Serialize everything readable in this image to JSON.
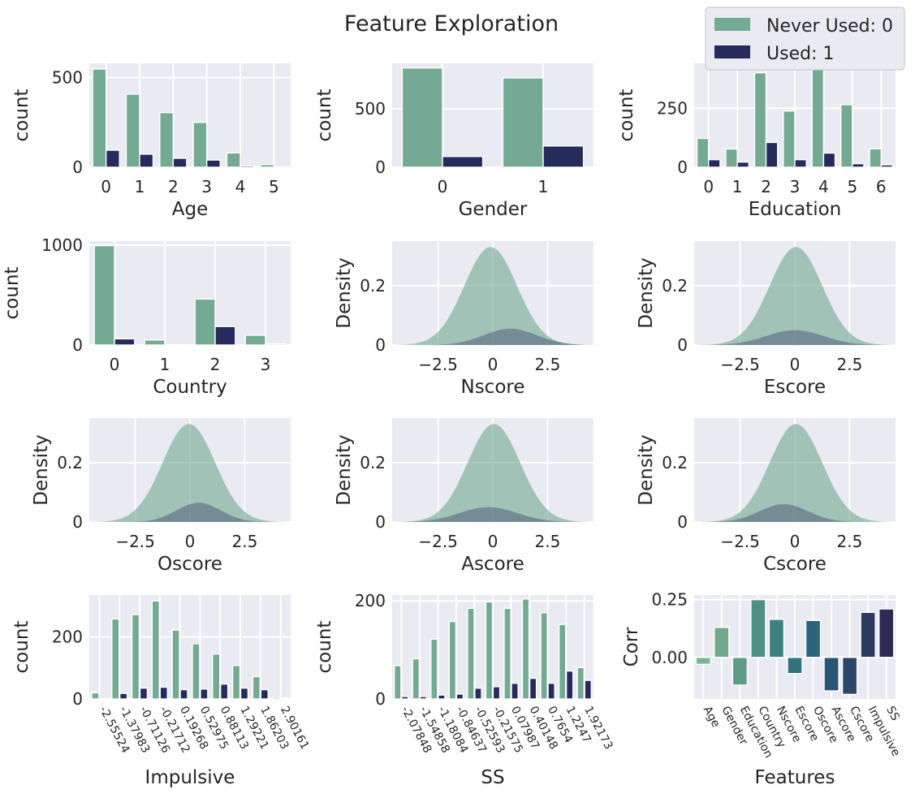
{
  "figure": {
    "title": "Feature Exploration",
    "legend": {
      "placement": "top-right",
      "entries": [
        {
          "label": "Never Used: 0",
          "color": "#74a993"
        },
        {
          "label": "Used: 1",
          "color": "#262b5b"
        }
      ]
    },
    "colors": {
      "plot_bg": "#eaeaf2",
      "grid": "#ffffff",
      "never": "#74a993",
      "used": "#262b5b",
      "text": "#262626"
    }
  },
  "chart_data": [
    {
      "type": "bar",
      "xlabel": "Age",
      "ylabel": "count",
      "categories": [
        "0",
        "1",
        "2",
        "3",
        "4",
        "5"
      ],
      "series": [
        {
          "name": "Never Used: 0",
          "values": [
            548,
            408,
            305,
            250,
            80,
            15
          ]
        },
        {
          "name": "Used: 1",
          "values": [
            95,
            73,
            50,
            40,
            8,
            2
          ]
        }
      ],
      "yticks": [
        0,
        500
      ],
      "ylim": [
        0,
        580
      ],
      "grid": true
    },
    {
      "type": "bar",
      "xlabel": "Gender",
      "ylabel": "count",
      "categories": [
        "0",
        "1"
      ],
      "series": [
        {
          "name": "Never Used: 0",
          "values": [
            850,
            765
          ]
        },
        {
          "name": "Used: 1",
          "values": [
            92,
            182
          ]
        }
      ],
      "yticks": [
        0,
        500
      ],
      "ylim": [
        0,
        890
      ],
      "grid": true
    },
    {
      "type": "bar",
      "xlabel": "Education",
      "ylabel": "count",
      "categories": [
        "0",
        "1",
        "2",
        "3",
        "4",
        "5",
        "6"
      ],
      "series": [
        {
          "name": "Never Used: 0",
          "values": [
            122,
            77,
            400,
            238,
            418,
            265,
            78
          ]
        },
        {
          "name": "Used: 1",
          "values": [
            32,
            22,
            105,
            32,
            60,
            15,
            10
          ]
        }
      ],
      "yticks": [
        0,
        250
      ],
      "ylim": [
        0,
        440
      ],
      "grid": true
    },
    {
      "type": "bar",
      "xlabel": "Country",
      "ylabel": "count",
      "categories": [
        "0",
        "1",
        "2",
        "3"
      ],
      "series": [
        {
          "name": "Never Used: 0",
          "values": [
            995,
            50,
            460,
            98
          ]
        },
        {
          "name": "Used: 1",
          "values": [
            62,
            3,
            185,
            12
          ]
        }
      ],
      "yticks": [
        0,
        1000
      ],
      "ylim": [
        0,
        1040
      ],
      "grid": true
    },
    {
      "type": "area",
      "xlabel": "Nscore",
      "ylabel": "Density",
      "series": [
        {
          "name": "Never Used: 0",
          "mean": -0.1,
          "sd": 1.2,
          "peak": 0.33
        },
        {
          "name": "Used: 1",
          "mean": 0.8,
          "sd": 1.2,
          "peak": 0.055
        }
      ],
      "xticks": [
        -2.5,
        0.0,
        2.5
      ],
      "xlim": [
        -4.6,
        4.6
      ],
      "yticks": [
        0.0,
        0.2
      ],
      "ylim": [
        0,
        0.35
      ],
      "grid": true
    },
    {
      "type": "area",
      "xlabel": "Escore",
      "ylabel": "Density",
      "series": [
        {
          "name": "Never Used: 0",
          "mean": 0.05,
          "sd": 1.2,
          "peak": 0.33
        },
        {
          "name": "Used: 1",
          "mean": 0.0,
          "sd": 1.3,
          "peak": 0.05
        }
      ],
      "xticks": [
        -2.5,
        0.0,
        2.5
      ],
      "xlim": [
        -4.6,
        4.6
      ],
      "yticks": [
        0.0,
        0.2
      ],
      "ylim": [
        0,
        0.35
      ],
      "grid": true
    },
    {
      "type": "area",
      "xlabel": "Oscore",
      "ylabel": "Density",
      "series": [
        {
          "name": "Never Used: 0",
          "mean": -0.05,
          "sd": 1.2,
          "peak": 0.33
        },
        {
          "name": "Used: 1",
          "mean": 0.4,
          "sd": 1.0,
          "peak": 0.065
        }
      ],
      "xticks": [
        -2.5,
        0.0,
        2.5
      ],
      "xlim": [
        -4.6,
        4.6
      ],
      "yticks": [
        0.0,
        0.2
      ],
      "ylim": [
        0,
        0.35
      ],
      "grid": true
    },
    {
      "type": "area",
      "xlabel": "Ascore",
      "ylabel": "Density",
      "series": [
        {
          "name": "Never Used: 0",
          "mean": 0.05,
          "sd": 1.2,
          "peak": 0.33
        },
        {
          "name": "Used: 1",
          "mean": -0.2,
          "sd": 1.3,
          "peak": 0.05
        }
      ],
      "xticks": [
        -2.5,
        0.0,
        2.5
      ],
      "xlim": [
        -4.6,
        4.6
      ],
      "yticks": [
        0.0,
        0.2
      ],
      "ylim": [
        0,
        0.35
      ],
      "grid": true
    },
    {
      "type": "area",
      "xlabel": "Cscore",
      "ylabel": "Density",
      "series": [
        {
          "name": "Never Used: 0",
          "mean": 0.05,
          "sd": 1.2,
          "peak": 0.33
        },
        {
          "name": "Used: 1",
          "mean": -0.5,
          "sd": 1.1,
          "peak": 0.06
        }
      ],
      "xticks": [
        -2.5,
        0.0,
        2.5
      ],
      "xlim": [
        -4.6,
        4.6
      ],
      "yticks": [
        0.0,
        0.2
      ],
      "ylim": [
        0,
        0.35
      ],
      "grid": true
    },
    {
      "type": "bar",
      "xlabel": "Impulsive",
      "ylabel": "count",
      "categories": [
        "-2.55524",
        "-1.37983",
        "-0.71126",
        "-0.21712",
        "0.19268",
        "0.52975",
        "0.88113",
        "1.29221",
        "1.86203",
        "2.90161"
      ],
      "series": [
        {
          "name": "Never Used: 0",
          "values": [
            20,
            258,
            272,
            316,
            222,
            178,
            145,
            108,
            72,
            5
          ]
        },
        {
          "name": "Used: 1",
          "values": [
            0,
            18,
            35,
            38,
            30,
            32,
            48,
            35,
            30,
            3
          ]
        }
      ],
      "yticks": [
        0,
        200
      ],
      "ylim": [
        0,
        335
      ],
      "grid": true
    },
    {
      "type": "bar",
      "xlabel": "SS",
      "ylabel": "count",
      "categories": [
        "-2.07848",
        "-1.54858",
        "-1.18084",
        "-0.84637",
        "-0.52593",
        "-0.21575",
        "0.07987",
        "0.40148",
        "0.7654",
        "1.2247",
        "1.92173"
      ],
      "series": [
        {
          "name": "Never Used: 0",
          "values": [
            68,
            82,
            122,
            158,
            185,
            198,
            185,
            204,
            176,
            152,
            64
          ]
        },
        {
          "name": "Used: 1",
          "values": [
            5,
            5,
            8,
            10,
            22,
            25,
            32,
            42,
            32,
            57,
            38
          ]
        }
      ],
      "yticks": [
        0,
        200
      ],
      "ylim": [
        0,
        212
      ],
      "grid": true
    },
    {
      "type": "bar",
      "xlabel": "Features",
      "ylabel": "Corr",
      "categories": [
        "Age",
        "Gender",
        "Education",
        "Country",
        "Nscore",
        "Escore",
        "Oscore",
        "Ascore",
        "Cscore",
        "Impulsive",
        "SS"
      ],
      "values": [
        -0.03,
        0.13,
        -0.12,
        0.25,
        0.165,
        -0.07,
        0.16,
        -0.145,
        -0.16,
        0.195,
        0.21
      ],
      "colors": [
        "#7db592",
        "#72a98c",
        "#5f9c88",
        "#4e8f85",
        "#3e8181",
        "#33737e",
        "#2c6479",
        "#285572",
        "#2b4669",
        "#2d395f",
        "#2e2c55"
      ],
      "yticks": [
        0.0,
        0.25
      ],
      "ytick_labels": [
        "0.00",
        "0.25"
      ],
      "ylim": [
        -0.18,
        0.27
      ],
      "grid": true
    }
  ]
}
